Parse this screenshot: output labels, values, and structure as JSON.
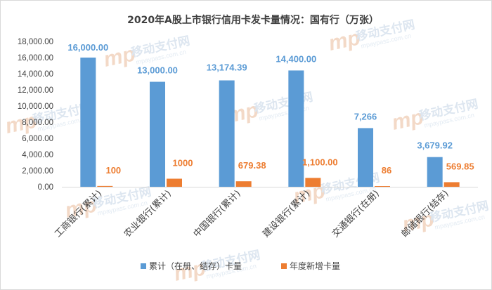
{
  "chart_data": {
    "type": "bar",
    "title": "2020年A股上市银行信用卡发卡量情况：国有行（万张）",
    "categories": [
      "工商银行(累计)",
      "农业银行(累计)",
      "中国银行(累计)",
      "建设银行(累计)",
      "交通银行(在册)",
      "邮储银行(结存)"
    ],
    "series": [
      {
        "name": "累计（在册、结存）卡量",
        "color": "#5b9bd5",
        "values": [
          16000,
          13000,
          13174.39,
          14400,
          7266,
          3679.92
        ],
        "labels": [
          "16,000.00",
          "13,000.00",
          "13,174.39",
          "14,400.00",
          "7,266",
          "3,679.92"
        ]
      },
      {
        "name": "年度新增卡量",
        "color": "#ed7d31",
        "values": [
          100,
          1000,
          679.38,
          1100,
          86,
          569.85
        ],
        "labels": [
          "100",
          "1000",
          "679.38",
          "1,100.00",
          "86",
          "569.85"
        ]
      }
    ],
    "ylim": [
      0,
      18000
    ],
    "yticks": [
      "0.00",
      "2,000.00",
      "4,000.00",
      "6,000.00",
      "8,000.00",
      "10,000.00",
      "12,000.00",
      "14,000.00",
      "16,000.00",
      "18,000.00"
    ],
    "ytick_values": [
      0,
      2000,
      4000,
      6000,
      8000,
      10000,
      12000,
      14000,
      16000,
      18000
    ],
    "grid": false,
    "legend": "bottom"
  },
  "watermark": {
    "logo": "mp",
    "text": "移动支付网",
    "url": "mpaypass.com.cn"
  }
}
